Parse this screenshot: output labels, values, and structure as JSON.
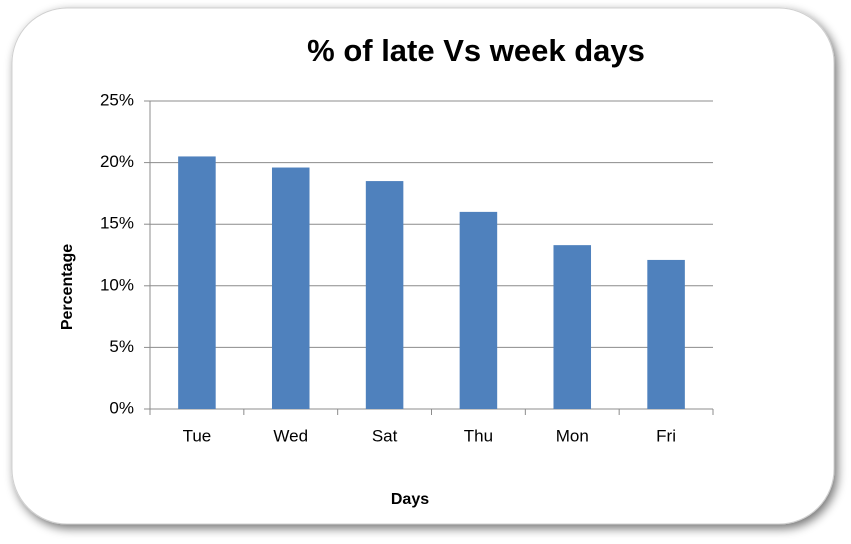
{
  "chart_data": {
    "type": "bar",
    "title": "% of late Vs week days",
    "x_label": "Days",
    "y_label": "Percentage",
    "categories": [
      "Tue",
      "Wed",
      "Sat",
      "Thu",
      "Mon",
      "Fri"
    ],
    "values": [
      20.5,
      19.6,
      18.5,
      16.0,
      13.3,
      12.1
    ],
    "color": "#4f81bd",
    "ylim": [
      0,
      25
    ],
    "yticks": [
      {
        "value": 0,
        "label": "0%"
      },
      {
        "value": 5,
        "label": "5%"
      },
      {
        "value": 10,
        "label": "10%"
      },
      {
        "value": 15,
        "label": "15%"
      },
      {
        "value": 20,
        "label": "20%"
      },
      {
        "value": 25,
        "label": "25%"
      }
    ],
    "grid": true
  }
}
